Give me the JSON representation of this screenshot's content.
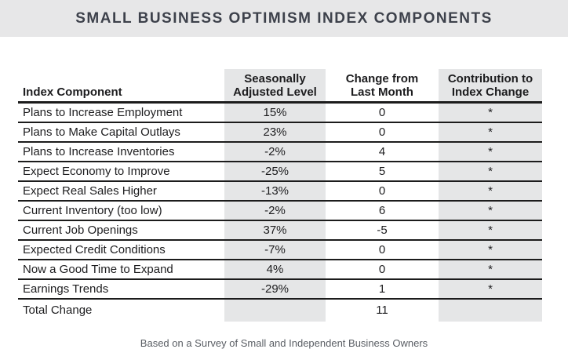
{
  "title": "SMALL BUSINESS OPTIMISM INDEX COMPONENTS",
  "footer": "Based on a Survey of Small and Independent Business Owners",
  "colors": {
    "title_bar_bg": "#e7e7e8",
    "column_band_bg": "#e5e6e7",
    "rule_color": "#1c1c1c",
    "title_text": "#3d414b",
    "footer_text": "#5a5e64"
  },
  "table": {
    "headers": {
      "component": "Index Component",
      "level": "Seasonally\nAdjusted Level",
      "change": "Change from\nLast Month",
      "contribution": "Contribution to\nIndex Change"
    },
    "rows": [
      {
        "component": "Plans to Increase Employment",
        "level": "15%",
        "change": "0",
        "contribution": "*"
      },
      {
        "component": "Plans to Make Capital Outlays",
        "level": "23%",
        "change": "0",
        "contribution": "*"
      },
      {
        "component": "Plans to Increase Inventories",
        "level": "-2%",
        "change": "4",
        "contribution": "*"
      },
      {
        "component": "Expect Economy to Improve",
        "level": "-25%",
        "change": "5",
        "contribution": "*"
      },
      {
        "component": "Expect Real Sales Higher",
        "level": "-13%",
        "change": "0",
        "contribution": "*"
      },
      {
        "component": "Current Inventory (too low)",
        "level": "-2%",
        "change": "6",
        "contribution": "*"
      },
      {
        "component": "Current Job Openings",
        "level": "37%",
        "change": "-5",
        "contribution": "*"
      },
      {
        "component": "Expected Credit Conditions",
        "level": "-7%",
        "change": "0",
        "contribution": "*"
      },
      {
        "component": "Now a Good Time to Expand",
        "level": "4%",
        "change": "0",
        "contribution": "*"
      },
      {
        "component": "Earnings Trends",
        "level": "-29%",
        "change": "1",
        "contribution": "*"
      }
    ],
    "total_row": {
      "component": "Total Change",
      "level": "",
      "change": "11",
      "contribution": ""
    }
  },
  "chart_data": {
    "type": "table",
    "title": "Small Business Optimism Index Components",
    "columns": [
      "Index Component",
      "Seasonally Adjusted Level",
      "Change from Last Month",
      "Contribution to Index Change"
    ],
    "rows": [
      [
        "Plans to Increase Employment",
        "15%",
        0,
        "*"
      ],
      [
        "Plans to Make Capital Outlays",
        "23%",
        0,
        "*"
      ],
      [
        "Plans to Increase Inventories",
        "-2%",
        4,
        "*"
      ],
      [
        "Expect Economy to Improve",
        "-25%",
        5,
        "*"
      ],
      [
        "Expect Real Sales Higher",
        "-13%",
        0,
        "*"
      ],
      [
        "Current Inventory (too low)",
        "-2%",
        6,
        "*"
      ],
      [
        "Current Job Openings",
        "37%",
        -5,
        "*"
      ],
      [
        "Expected Credit Conditions",
        "-7%",
        0,
        "*"
      ],
      [
        "Now a Good Time to Expand",
        "4%",
        0,
        "*"
      ],
      [
        "Earnings Trends",
        "-29%",
        1,
        "*"
      ],
      [
        "Total Change",
        "",
        11,
        ""
      ]
    ],
    "note": "Based on a Survey of Small and Independent Business Owners"
  }
}
